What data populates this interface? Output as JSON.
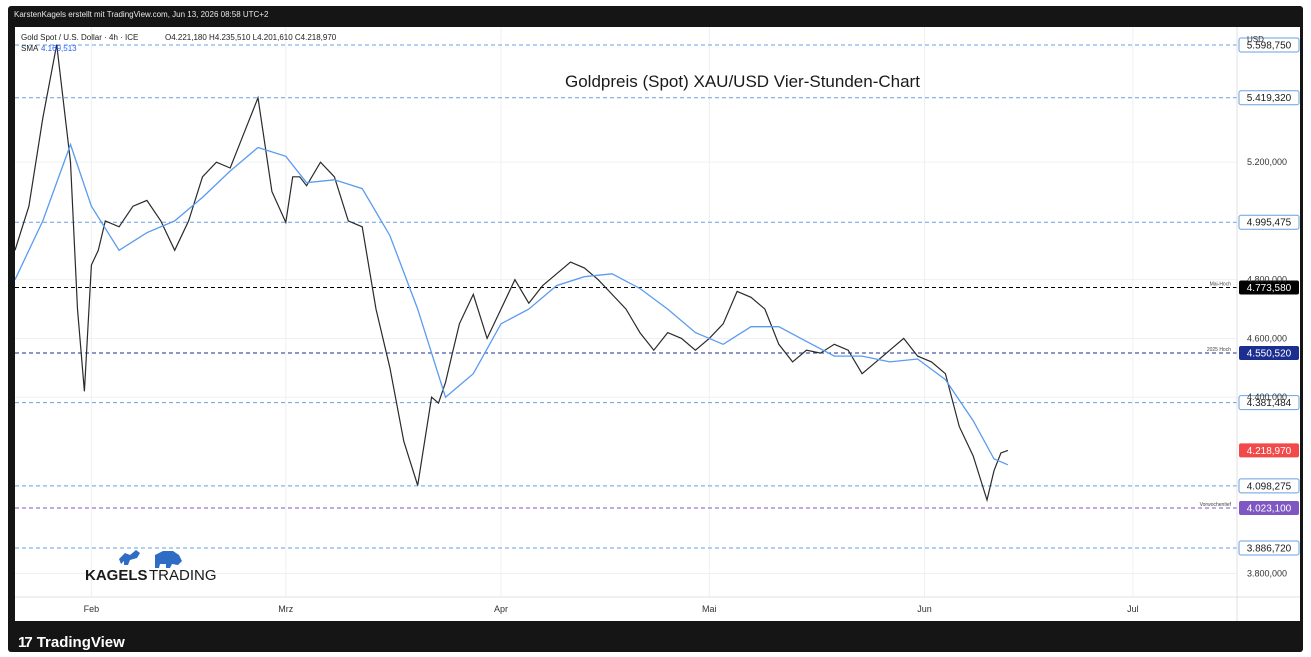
{
  "header": {
    "attribution": "KarstenKagels erstellt mit TradingView.com, Jun 13, 2026 08:58 UTC+2"
  },
  "legend": {
    "symbol_line": "Gold Spot / U.S. Dollar · 4h · ICE",
    "ohlc": "O4.221,180  H4.235,510  L4.201,610  C4.218,970",
    "sma_label": "SMA",
    "sma_value": "4.169,513"
  },
  "footer": {
    "brand": "TradingView"
  },
  "logo": {
    "text_bold": "KAGELS",
    "text_light": "TRADING"
  },
  "colors": {
    "price": "#2a2a2a",
    "sma": "#5b9bf0",
    "level": "#6aa0e0",
    "last_price": "#f24a4a",
    "navy": "#1c2e8f",
    "purple": "#7e57c2",
    "black": "#000000"
  },
  "chart_data": {
    "type": "line",
    "title": "Goldpreis (Spot) XAU/USD Vier-Stunden-Chart",
    "currency": "USD",
    "ylim": [
      3720,
      5660
    ],
    "xlim": [
      "2026-01-21",
      "2026-07-16"
    ],
    "x_ticks": [
      {
        "date": "2026-02-01",
        "label": "Feb"
      },
      {
        "date": "2026-03-01",
        "label": "Mrz"
      },
      {
        "date": "2026-04-01",
        "label": "Apr"
      },
      {
        "date": "2026-05-01",
        "label": "Mai"
      },
      {
        "date": "2026-06-01",
        "label": "Jun"
      },
      {
        "date": "2026-07-01",
        "label": "Jul"
      }
    ],
    "y_ticks": [
      {
        "value": 5200,
        "label": "5.200,000"
      },
      {
        "value": 4800,
        "label": "4.800,000"
      },
      {
        "value": 4600,
        "label": "4.600,000"
      },
      {
        "value": 4400,
        "label": "4.400,000"
      },
      {
        "value": 3800,
        "label": "3.800,000"
      }
    ],
    "price_series": {
      "name": "Gold Spot / U.S. Dollar",
      "x": [
        "2026-01-21",
        "2026-01-23",
        "2026-01-25",
        "2026-01-27",
        "2026-01-29",
        "2026-01-30",
        "2026-01-31",
        "2026-02-01",
        "2026-02-02",
        "2026-02-03",
        "2026-02-05",
        "2026-02-07",
        "2026-02-09",
        "2026-02-11",
        "2026-02-13",
        "2026-02-15",
        "2026-02-17",
        "2026-02-19",
        "2026-02-21",
        "2026-02-23",
        "2026-02-25",
        "2026-02-27",
        "2026-03-01",
        "2026-03-02",
        "2026-03-03",
        "2026-03-04",
        "2026-03-06",
        "2026-03-08",
        "2026-03-10",
        "2026-03-12",
        "2026-03-14",
        "2026-03-16",
        "2026-03-18",
        "2026-03-20",
        "2026-03-22",
        "2026-03-23",
        "2026-03-24",
        "2026-03-25",
        "2026-03-26",
        "2026-03-28",
        "2026-03-30",
        "2026-04-01",
        "2026-04-03",
        "2026-04-05",
        "2026-04-07",
        "2026-04-09",
        "2026-04-11",
        "2026-04-13",
        "2026-04-15",
        "2026-04-17",
        "2026-04-19",
        "2026-04-21",
        "2026-04-23",
        "2026-04-25",
        "2026-04-27",
        "2026-04-29",
        "2026-05-01",
        "2026-05-03",
        "2026-05-05",
        "2026-05-07",
        "2026-05-09",
        "2026-05-11",
        "2026-05-13",
        "2026-05-15",
        "2026-05-17",
        "2026-05-19",
        "2026-05-21",
        "2026-05-23",
        "2026-05-25",
        "2026-05-27",
        "2026-05-29",
        "2026-05-31",
        "2026-06-02",
        "2026-06-04",
        "2026-06-06",
        "2026-06-08",
        "2026-06-10",
        "2026-06-11",
        "2026-06-12",
        "2026-06-13"
      ],
      "y": [
        4900,
        5050,
        5350,
        5600,
        5200,
        4700,
        4420,
        4850,
        4900,
        5000,
        4980,
        5050,
        5070,
        5000,
        4900,
        5000,
        5150,
        5200,
        5180,
        5300,
        5419,
        5100,
        4995,
        5150,
        5150,
        5120,
        5200,
        5150,
        5000,
        4980,
        4700,
        4500,
        4250,
        4100,
        4400,
        4380,
        4450,
        4550,
        4650,
        4750,
        4600,
        4700,
        4800,
        4720,
        4780,
        4820,
        4860,
        4840,
        4800,
        4750,
        4700,
        4620,
        4560,
        4620,
        4600,
        4560,
        4600,
        4650,
        4760,
        4740,
        4700,
        4580,
        4520,
        4560,
        4550,
        4580,
        4560,
        4480,
        4520,
        4560,
        4600,
        4540,
        4520,
        4480,
        4300,
        4200,
        4050,
        4150,
        4210,
        4219
      ]
    },
    "sma_series": {
      "name": "SMA",
      "x": [
        "2026-01-21",
        "2026-01-25",
        "2026-01-29",
        "2026-02-01",
        "2026-02-05",
        "2026-02-09",
        "2026-02-13",
        "2026-02-17",
        "2026-02-21",
        "2026-02-25",
        "2026-03-01",
        "2026-03-04",
        "2026-03-08",
        "2026-03-12",
        "2026-03-16",
        "2026-03-20",
        "2026-03-24",
        "2026-03-28",
        "2026-04-01",
        "2026-04-05",
        "2026-04-09",
        "2026-04-13",
        "2026-04-17",
        "2026-04-21",
        "2026-04-25",
        "2026-04-29",
        "2026-05-03",
        "2026-05-07",
        "2026-05-11",
        "2026-05-15",
        "2026-05-19",
        "2026-05-23",
        "2026-05-27",
        "2026-05-31",
        "2026-06-04",
        "2026-06-08",
        "2026-06-11",
        "2026-06-13"
      ],
      "y": [
        4800,
        5000,
        5260,
        5050,
        4900,
        4960,
        5000,
        5080,
        5170,
        5250,
        5220,
        5130,
        5140,
        5110,
        4950,
        4700,
        4400,
        4480,
        4650,
        4700,
        4780,
        4810,
        4820,
        4770,
        4700,
        4620,
        4580,
        4640,
        4640,
        4590,
        4540,
        4540,
        4520,
        4530,
        4460,
        4320,
        4190,
        4170
      ]
    },
    "levels": [
      {
        "value": 5598.75,
        "label": "5.598,750",
        "style": "level",
        "note": ""
      },
      {
        "value": 5419.32,
        "label": "5.419,320",
        "style": "level",
        "note": ""
      },
      {
        "value": 4995.475,
        "label": "4.995,475",
        "style": "level",
        "note": ""
      },
      {
        "value": 4773.58,
        "label": "4.773,580",
        "style": "black",
        "note": "Mai-Hoch"
      },
      {
        "value": 4550.52,
        "label": "4.550,520",
        "style": "navy",
        "note": "2025 Hoch"
      },
      {
        "value": 4381.484,
        "label": "4.381,484",
        "style": "level",
        "note": ""
      },
      {
        "value": 4218.97,
        "label": "4.218,970",
        "style": "last_price",
        "note": ""
      },
      {
        "value": 4098.275,
        "label": "4.098,275",
        "style": "level",
        "note": ""
      },
      {
        "value": 4023.1,
        "label": "4.023,100",
        "style": "purple",
        "note": "Vorwochentief"
      },
      {
        "value": 3886.72,
        "label": "3.886,720",
        "style": "level",
        "note": ""
      }
    ]
  }
}
